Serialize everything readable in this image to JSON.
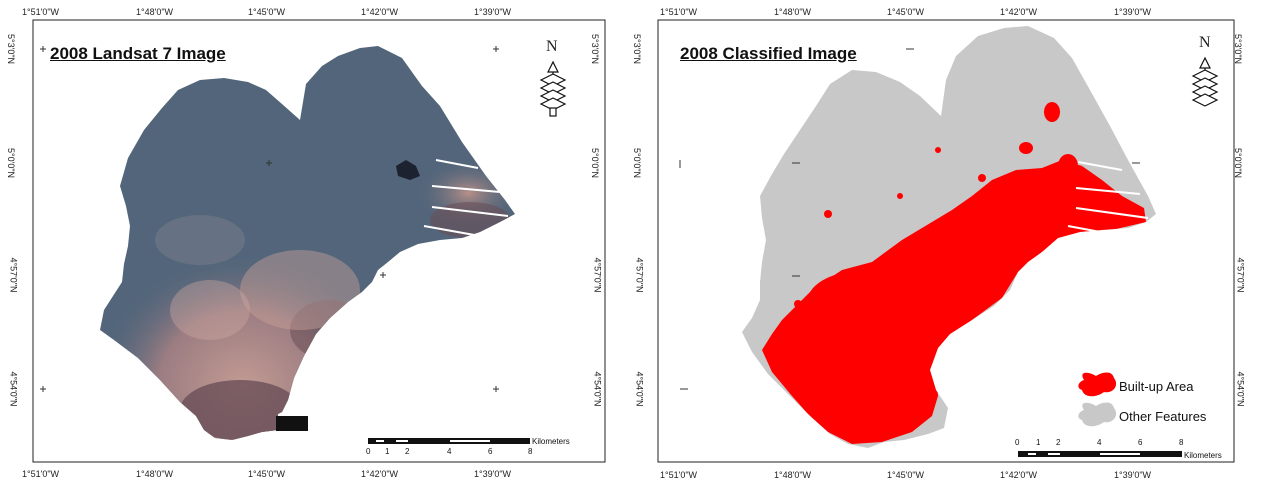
{
  "panels": {
    "left": {
      "title": "2008 Landsat 7 Image"
    },
    "right": {
      "title": "2008 Classified Image"
    }
  },
  "graticule": {
    "top_longitudes": [
      "1°51'0\"W",
      "1°48'0\"W",
      "1°45'0\"W",
      "1°42'0\"W",
      "1°39'0\"W"
    ],
    "bottom_longitudes": [
      "1°51'0\"W",
      "1°48'0\"W",
      "1°45'0\"W",
      "1°42'0\"W",
      "1°39'0\"W"
    ],
    "latitudes": [
      "5°3'0\"N",
      "5°0'0\"N",
      "4°57'0\"N",
      "4°54'0\"N"
    ]
  },
  "north_arrow": {
    "letter": "N"
  },
  "scale_bar": {
    "ticks": [
      "0",
      "1",
      "2",
      "4",
      "6",
      "8"
    ],
    "unit": "Kilometers"
  },
  "legend": {
    "items": [
      {
        "label": "Built-up Area",
        "color": "#ff0000"
      },
      {
        "label": "Other Features",
        "color": "#c8c8c8"
      }
    ]
  },
  "colors": {
    "landsat_base": "#52657a",
    "landsat_urban": "#b58a84",
    "landsat_coast": "#6a4f57",
    "classified_other": "#c8c8c8",
    "classified_builtup": "#ff0000"
  }
}
